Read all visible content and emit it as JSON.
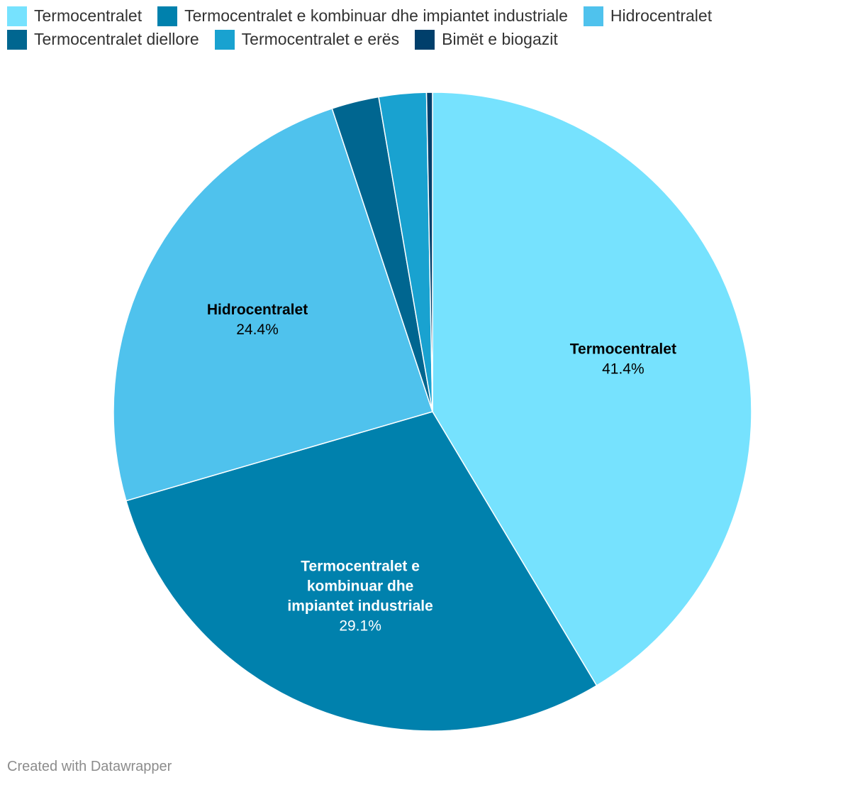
{
  "chart_data": {
    "type": "pie",
    "categories": [
      "Termocentralet",
      "Termocentralet e kombinuar dhe impiantet industriale",
      "Hidrocentralet",
      "Termocentralet diellore",
      "Termocentralet e erës",
      "Bimët e biogazit"
    ],
    "values": [
      41.4,
      29.1,
      24.4,
      2.4,
      2.4,
      0.3
    ],
    "colors": [
      "#76e2fe",
      "#0081ad",
      "#4fc2ed",
      "#006690",
      "#19a2d0",
      "#003f6b"
    ],
    "label_colors": [
      "#000000",
      "#ffffff",
      "#000000",
      "#ffffff",
      "#ffffff",
      "#ffffff"
    ],
    "data_labels": [
      {
        "lines": [
          "Termocentralet"
        ],
        "value": "41.4%"
      },
      {
        "lines": [
          "Termocentralet e",
          "kombinuar dhe",
          "impiantet industriale"
        ],
        "value": "29.1%"
      },
      {
        "lines": [
          "Hidrocentralet"
        ],
        "value": "24.4%"
      },
      null,
      null,
      null
    ],
    "legend_rows": [
      [
        0,
        1,
        2
      ],
      [
        3,
        4,
        5
      ]
    ],
    "legend_position": "top-left",
    "start_angle": "12 o'clock",
    "direction": "clockwise"
  },
  "footer": {
    "credit": "Created with Datawrapper"
  }
}
